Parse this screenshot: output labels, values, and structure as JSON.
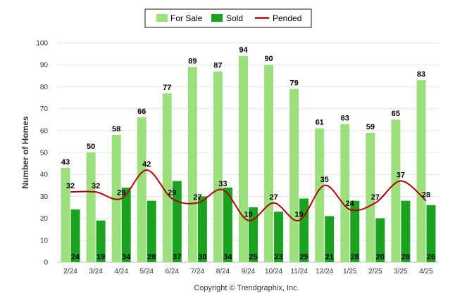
{
  "chart_data": {
    "type": "bar",
    "categories": [
      "2/24",
      "3/24",
      "4/24",
      "5/24",
      "6/24",
      "7/24",
      "8/24",
      "9/24",
      "10/24",
      "11/24",
      "12/24",
      "1/25",
      "2/25",
      "3/25",
      "4/25"
    ],
    "series": [
      {
        "name": "For Sale",
        "type": "bar",
        "color": "#9be07c",
        "values": [
          43,
          50,
          58,
          66,
          77,
          89,
          87,
          94,
          90,
          79,
          61,
          63,
          59,
          65,
          83
        ]
      },
      {
        "name": "Sold",
        "type": "bar",
        "color": "#19a31f",
        "values": [
          24,
          19,
          34,
          28,
          37,
          30,
          34,
          25,
          23,
          29,
          21,
          28,
          20,
          28,
          26
        ]
      },
      {
        "name": "Pended",
        "type": "line",
        "color": "#b00000",
        "values": [
          32,
          32,
          29,
          42,
          29,
          27,
          33,
          19,
          27,
          19,
          35,
          24,
          27,
          37,
          28
        ]
      }
    ],
    "xlabel": "",
    "ylabel": "Number of Homes",
    "ylim": [
      0,
      100
    ],
    "yticks": [
      0,
      10,
      20,
      30,
      40,
      50,
      60,
      70,
      80,
      90,
      100
    ],
    "grid": true,
    "legend": "top-center",
    "credit": "Copyright © Trendgraphix, Inc."
  }
}
